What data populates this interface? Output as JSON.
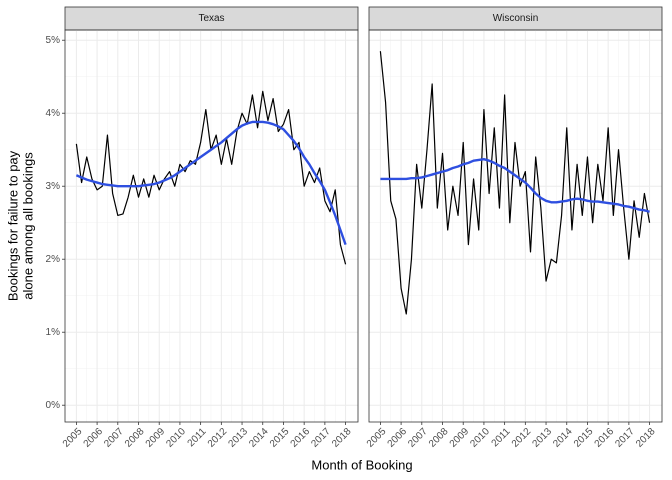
{
  "x_label": "Month of Booking",
  "y_label": [
    "Bookings for failure to pay",
    "alone among all bookings"
  ],
  "chart_data": [
    {
      "type": "line",
      "title": "Texas",
      "x": [
        2005,
        2005.25,
        2005.5,
        2005.75,
        2006,
        2006.25,
        2006.5,
        2006.75,
        2007,
        2007.25,
        2007.5,
        2007.75,
        2008,
        2008.25,
        2008.5,
        2008.75,
        2009,
        2009.25,
        2009.5,
        2009.75,
        2010,
        2010.25,
        2010.5,
        2010.75,
        2011,
        2011.25,
        2011.5,
        2011.75,
        2012,
        2012.25,
        2012.5,
        2012.75,
        2013,
        2013.25,
        2013.5,
        2013.75,
        2014,
        2014.25,
        2014.5,
        2014.75,
        2015,
        2015.25,
        2015.5,
        2015.75,
        2016,
        2016.25,
        2016.5,
        2016.75,
        2017,
        2017.25,
        2017.5,
        2017.75,
        2018
      ],
      "series": [
        {
          "color": "#000000",
          "values": [
            3.58,
            3.05,
            3.4,
            3.1,
            2.95,
            3.0,
            3.7,
            2.9,
            2.6,
            2.62,
            2.85,
            3.15,
            2.85,
            3.1,
            2.85,
            3.15,
            2.95,
            3.1,
            3.2,
            3.0,
            3.3,
            3.2,
            3.35,
            3.3,
            3.6,
            4.05,
            3.5,
            3.7,
            3.3,
            3.65,
            3.3,
            3.75,
            4.0,
            3.85,
            4.25,
            3.8,
            4.3,
            3.9,
            4.2,
            3.75,
            3.85,
            4.05,
            3.5,
            3.6,
            3.0,
            3.2,
            3.05,
            3.25,
            2.8,
            2.65,
            2.95,
            2.2,
            1.93
          ]
        },
        {
          "color": "#2e4fe0",
          "values": [
            3.15,
            3.12,
            3.09,
            3.07,
            3.05,
            3.03,
            3.02,
            3.01,
            3.0,
            3.0,
            3.0,
            3.0,
            3.0,
            3.01,
            3.02,
            3.03,
            3.05,
            3.08,
            3.11,
            3.15,
            3.2,
            3.25,
            3.3,
            3.35,
            3.4,
            3.45,
            3.5,
            3.55,
            3.6,
            3.66,
            3.72,
            3.78,
            3.83,
            3.86,
            3.88,
            3.88,
            3.88,
            3.87,
            3.85,
            3.82,
            3.78,
            3.7,
            3.62,
            3.52,
            3.4,
            3.3,
            3.18,
            3.07,
            2.95,
            2.78,
            2.6,
            2.4,
            2.2
          ]
        }
      ],
      "xlim": [
        2004.45,
        2018.6
      ],
      "xticks": [
        2005,
        2006,
        2007,
        2008,
        2009,
        2010,
        2011,
        2012,
        2013,
        2014,
        2015,
        2016,
        2017,
        2018
      ],
      "ylim": [
        -0.23,
        5.14
      ],
      "yticks": [
        {
          "value": 0,
          "label": "0%"
        },
        {
          "value": 1,
          "label": "1%"
        },
        {
          "value": 2,
          "label": "2%"
        },
        {
          "value": 3,
          "label": "3%"
        },
        {
          "value": 4,
          "label": "4%"
        },
        {
          "value": 5,
          "label": "5%"
        }
      ],
      "grid": true
    },
    {
      "type": "line",
      "title": "Wisconsin",
      "x": [
        2005,
        2005.25,
        2005.5,
        2005.75,
        2006,
        2006.25,
        2006.5,
        2006.75,
        2007,
        2007.25,
        2007.5,
        2007.75,
        2008,
        2008.25,
        2008.5,
        2008.75,
        2009,
        2009.25,
        2009.5,
        2009.75,
        2010,
        2010.25,
        2010.5,
        2010.75,
        2011,
        2011.25,
        2011.5,
        2011.75,
        2012,
        2012.25,
        2012.5,
        2012.75,
        2013,
        2013.25,
        2013.5,
        2013.75,
        2014,
        2014.25,
        2014.5,
        2014.75,
        2015,
        2015.25,
        2015.5,
        2015.75,
        2016,
        2016.25,
        2016.5,
        2016.75,
        2017,
        2017.25,
        2017.5,
        2017.75,
        2018
      ],
      "series": [
        {
          "color": "#000000",
          "values": [
            4.85,
            4.15,
            2.8,
            2.55,
            1.6,
            1.25,
            2.0,
            3.3,
            2.7,
            3.5,
            4.4,
            2.7,
            3.45,
            2.4,
            3.0,
            2.6,
            3.6,
            2.2,
            3.1,
            2.4,
            4.05,
            2.9,
            3.8,
            2.7,
            4.25,
            2.5,
            3.6,
            3.0,
            3.2,
            2.1,
            3.4,
            2.7,
            1.7,
            2.0,
            1.95,
            2.6,
            3.8,
            2.4,
            3.3,
            2.6,
            3.4,
            2.5,
            3.3,
            2.8,
            3.8,
            2.6,
            3.5,
            2.7,
            2.0,
            2.8,
            2.3,
            2.9,
            2.5
          ]
        },
        {
          "color": "#2e4fe0",
          "values": [
            3.1,
            3.1,
            3.1,
            3.1,
            3.1,
            3.1,
            3.11,
            3.11,
            3.12,
            3.14,
            3.16,
            3.18,
            3.2,
            3.22,
            3.25,
            3.27,
            3.3,
            3.32,
            3.35,
            3.36,
            3.37,
            3.35,
            3.32,
            3.28,
            3.25,
            3.2,
            3.15,
            3.1,
            3.05,
            2.98,
            2.9,
            2.84,
            2.8,
            2.78,
            2.78,
            2.79,
            2.8,
            2.82,
            2.83,
            2.82,
            2.8,
            2.79,
            2.79,
            2.78,
            2.77,
            2.76,
            2.75,
            2.73,
            2.72,
            2.7,
            2.68,
            2.67,
            2.65
          ]
        }
      ],
      "xlim": [
        2004.45,
        2018.6
      ],
      "xticks": [
        2005,
        2006,
        2007,
        2008,
        2009,
        2010,
        2011,
        2012,
        2013,
        2014,
        2015,
        2016,
        2017,
        2018
      ],
      "ylim": [
        -0.23,
        5.14
      ],
      "yticks": [
        {
          "value": 0,
          "label": "0%"
        },
        {
          "value": 1,
          "label": "1%"
        },
        {
          "value": 2,
          "label": "2%"
        },
        {
          "value": 3,
          "label": "3%"
        },
        {
          "value": 4,
          "label": "4%"
        },
        {
          "value": 5,
          "label": "5%"
        }
      ],
      "grid": true
    }
  ]
}
